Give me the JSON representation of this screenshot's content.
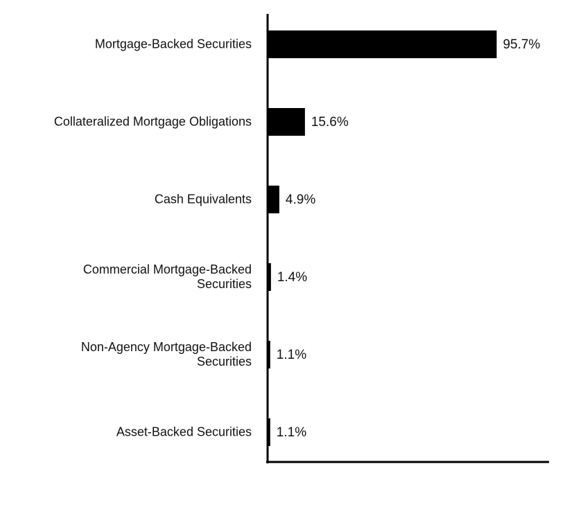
{
  "chart_data": {
    "type": "hbar",
    "categories": [
      "Mortgage-Backed Securities",
      "Collateralized Mortgage Obligations",
      "Cash Equivalents",
      "Commercial Mortgage-Backed Securities",
      "Non-Agency Mortgage-Backed Securities",
      "Asset-Backed Securities"
    ],
    "values": [
      95.7,
      15.6,
      4.9,
      1.4,
      1.1,
      1.1
    ],
    "value_labels": [
      "95.7%",
      "15.6%",
      "4.9%",
      "1.4%",
      "1.1%",
      "1.1%"
    ],
    "color": "#000000",
    "xlim": [
      0,
      117
    ]
  }
}
